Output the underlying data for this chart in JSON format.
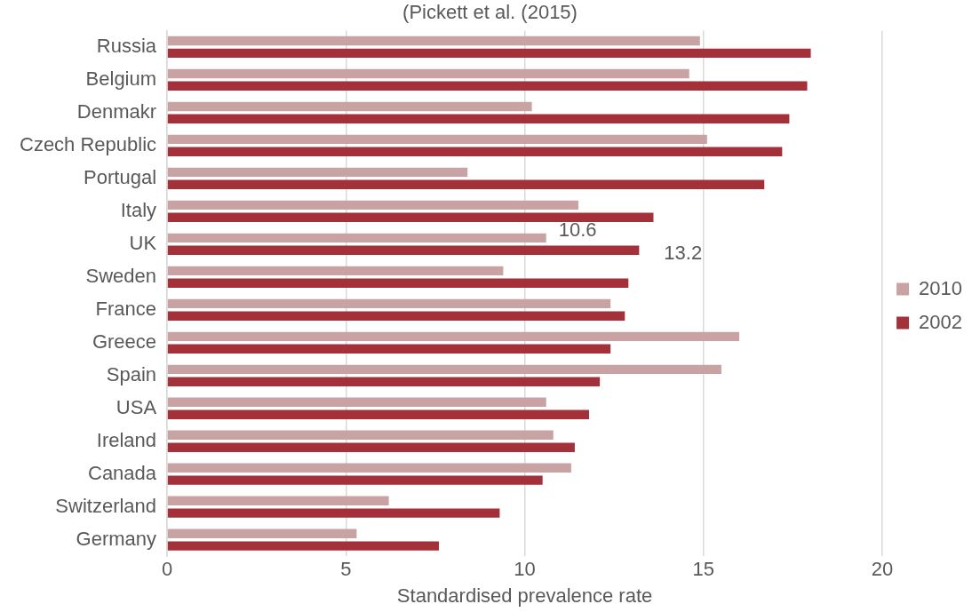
{
  "chart_data": {
    "type": "bar",
    "orientation": "horizontal",
    "title": "(Pickett et al. (2015)",
    "xlabel": "Standardised prevalence rate",
    "categories": [
      "Russia",
      "Belgium",
      "Denmakr",
      "Czech Republic",
      "Portugal",
      "Italy",
      "UK",
      "Sweden",
      "France",
      "Greece",
      "Spain",
      "USA",
      "Ireland",
      "Canada",
      "Switzerland",
      "Germany"
    ],
    "series": [
      {
        "name": "2010",
        "color": "#c9a3a3",
        "values": [
          14.9,
          14.6,
          10.2,
          15.1,
          8.4,
          11.5,
          10.6,
          9.4,
          12.4,
          16.0,
          15.5,
          10.6,
          10.8,
          11.3,
          6.2,
          5.3
        ],
        "value_labels": [
          null,
          null,
          null,
          null,
          null,
          null,
          "10.6",
          null,
          null,
          null,
          null,
          null,
          null,
          null,
          null,
          null
        ]
      },
      {
        "name": "2002",
        "color": "#a4303a",
        "values": [
          18.0,
          17.9,
          17.4,
          17.2,
          16.7,
          13.6,
          13.2,
          12.9,
          12.8,
          12.4,
          12.1,
          11.8,
          11.4,
          10.5,
          9.3,
          7.6
        ],
        "value_labels": [
          null,
          null,
          null,
          null,
          null,
          null,
          "13.2",
          null,
          null,
          null,
          null,
          null,
          null,
          null,
          null,
          null
        ]
      }
    ],
    "xlim": [
      0,
      20
    ],
    "xticks": [
      0,
      5,
      10,
      15,
      20
    ],
    "grid": "x",
    "legend": "right"
  }
}
